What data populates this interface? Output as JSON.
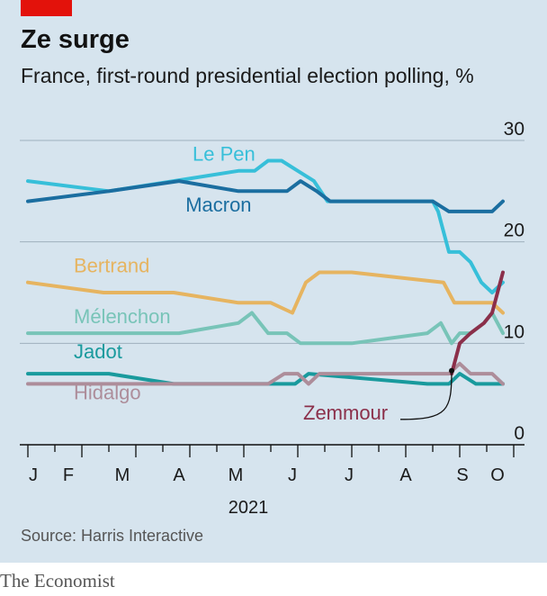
{
  "header": {
    "title": "Ze surge",
    "subtitle": "France, first-round presidential election polling, %"
  },
  "footer": {
    "source": "Source: Harris Interactive",
    "brand": "The Economist"
  },
  "chart_data": {
    "type": "line",
    "title": "Ze surge",
    "subtitle": "France, first-round presidential election polling, %",
    "xlabel": "",
    "ylabel": "",
    "year_label": "2021",
    "xlim": [
      0,
      9.2
    ],
    "ylim": [
      0,
      30
    ],
    "y_ticks": [
      0,
      10,
      20,
      30
    ],
    "y_tick_labels": [
      "0",
      "10",
      "20",
      "30"
    ],
    "x_ticks": [
      {
        "label": "J",
        "x": 0.1
      },
      {
        "label": "F",
        "x": 0.75
      },
      {
        "label": "M",
        "x": 1.75
      },
      {
        "label": "A",
        "x": 2.8
      },
      {
        "label": "M",
        "x": 3.85
      },
      {
        "label": "J",
        "x": 4.9
      },
      {
        "label": "J",
        "x": 5.95
      },
      {
        "label": "A",
        "x": 7.0
      },
      {
        "label": "S",
        "x": 8.05
      },
      {
        "label": "O",
        "x": 8.7
      }
    ],
    "grid": true,
    "colors": {
      "Le Pen": "#37bfd9",
      "Macron": "#1b6ea0",
      "Bertrand": "#e6b460",
      "Mélenchon": "#78c4b8",
      "Jadot": "#199a9d",
      "Hidalgo": "#ad8d9a",
      "Zemmour": "#8b2f4a"
    },
    "series": [
      {
        "name": "Le Pen",
        "x": [
          0,
          1.5,
          2.7,
          3.9,
          4.2,
          4.45,
          4.7,
          5.0,
          5.3,
          5.55,
          6.0,
          7.0,
          7.4,
          7.5,
          7.6,
          7.8,
          8.0,
          8.2,
          8.4,
          8.6,
          8.8
        ],
        "y": [
          26,
          25,
          26,
          27,
          27,
          28,
          28,
          27,
          26,
          24,
          24,
          24,
          24,
          24,
          23,
          19,
          19,
          18,
          16,
          15,
          16
        ]
      },
      {
        "name": "Macron",
        "x": [
          0,
          1.5,
          2.8,
          3.9,
          4.8,
          5.05,
          5.35,
          5.6,
          7.5,
          7.8,
          8.2,
          8.6,
          8.8
        ],
        "y": [
          24,
          25,
          26,
          25,
          25,
          26,
          25,
          24,
          24,
          23,
          23,
          23,
          24
        ]
      },
      {
        "name": "Bertrand",
        "x": [
          0,
          1.4,
          2.7,
          3.9,
          4.5,
          4.9,
          5.15,
          5.4,
          5.7,
          6.0,
          7.7,
          7.9,
          8.2,
          8.6,
          8.8
        ],
        "y": [
          16,
          15,
          15,
          14,
          14,
          13,
          16,
          17,
          17,
          17,
          16,
          14,
          14,
          14,
          13
        ]
      },
      {
        "name": "Mélenchon",
        "x": [
          0,
          2.8,
          3.9,
          4.15,
          4.45,
          4.8,
          5.05,
          5.55,
          6.0,
          7.4,
          7.65,
          7.85,
          8.0,
          8.2,
          8.45,
          8.6,
          8.8
        ],
        "y": [
          11,
          11,
          12,
          13,
          11,
          11,
          10,
          10,
          10,
          11,
          12,
          10,
          11,
          11,
          12,
          13,
          11
        ]
      },
      {
        "name": "Jadot",
        "x": [
          0,
          1.5,
          2.7,
          4.0,
          4.75,
          4.95,
          5.2,
          7.4,
          7.8,
          8.0,
          8.3,
          8.8
        ],
        "y": [
          7,
          7,
          6,
          6,
          6,
          6,
          7,
          6,
          6,
          7,
          6,
          6
        ]
      },
      {
        "name": "Hidalgo",
        "x": [
          0,
          4.0,
          4.45,
          4.75,
          5.0,
          5.2,
          5.4,
          5.6,
          6.0,
          7.5,
          7.8,
          8.0,
          8.2,
          8.6,
          8.8
        ],
        "y": [
          6,
          6,
          6,
          7,
          7,
          6,
          7,
          7,
          7,
          7,
          7,
          8,
          7,
          7,
          6
        ]
      },
      {
        "name": "Zemmour",
        "x": [
          7.85,
          7.9,
          8.0,
          8.2,
          8.45,
          8.6,
          8.8
        ],
        "y": [
          7,
          8,
          10,
          11,
          12,
          13,
          17
        ]
      }
    ],
    "labels": [
      {
        "name": "Le Pen",
        "x": 3.05,
        "y": 28
      },
      {
        "name": "Macron",
        "x": 2.92,
        "y": 23
      },
      {
        "name": "Bertrand",
        "x": 0.85,
        "y": 17
      },
      {
        "name": "Mélenchon",
        "x": 0.85,
        "y": 12
      },
      {
        "name": "Jadot",
        "x": 0.85,
        "y": 8.5
      },
      {
        "name": "Hidalgo",
        "x": 0.85,
        "y": 4.5
      },
      {
        "name": "Zemmour",
        "x": 5.1,
        "y": 2.5
      }
    ],
    "annotation": {
      "name": "Zemmour",
      "from": [
        6.9,
        2.5
      ],
      "to": [
        7.85,
        7.3
      ]
    }
  }
}
